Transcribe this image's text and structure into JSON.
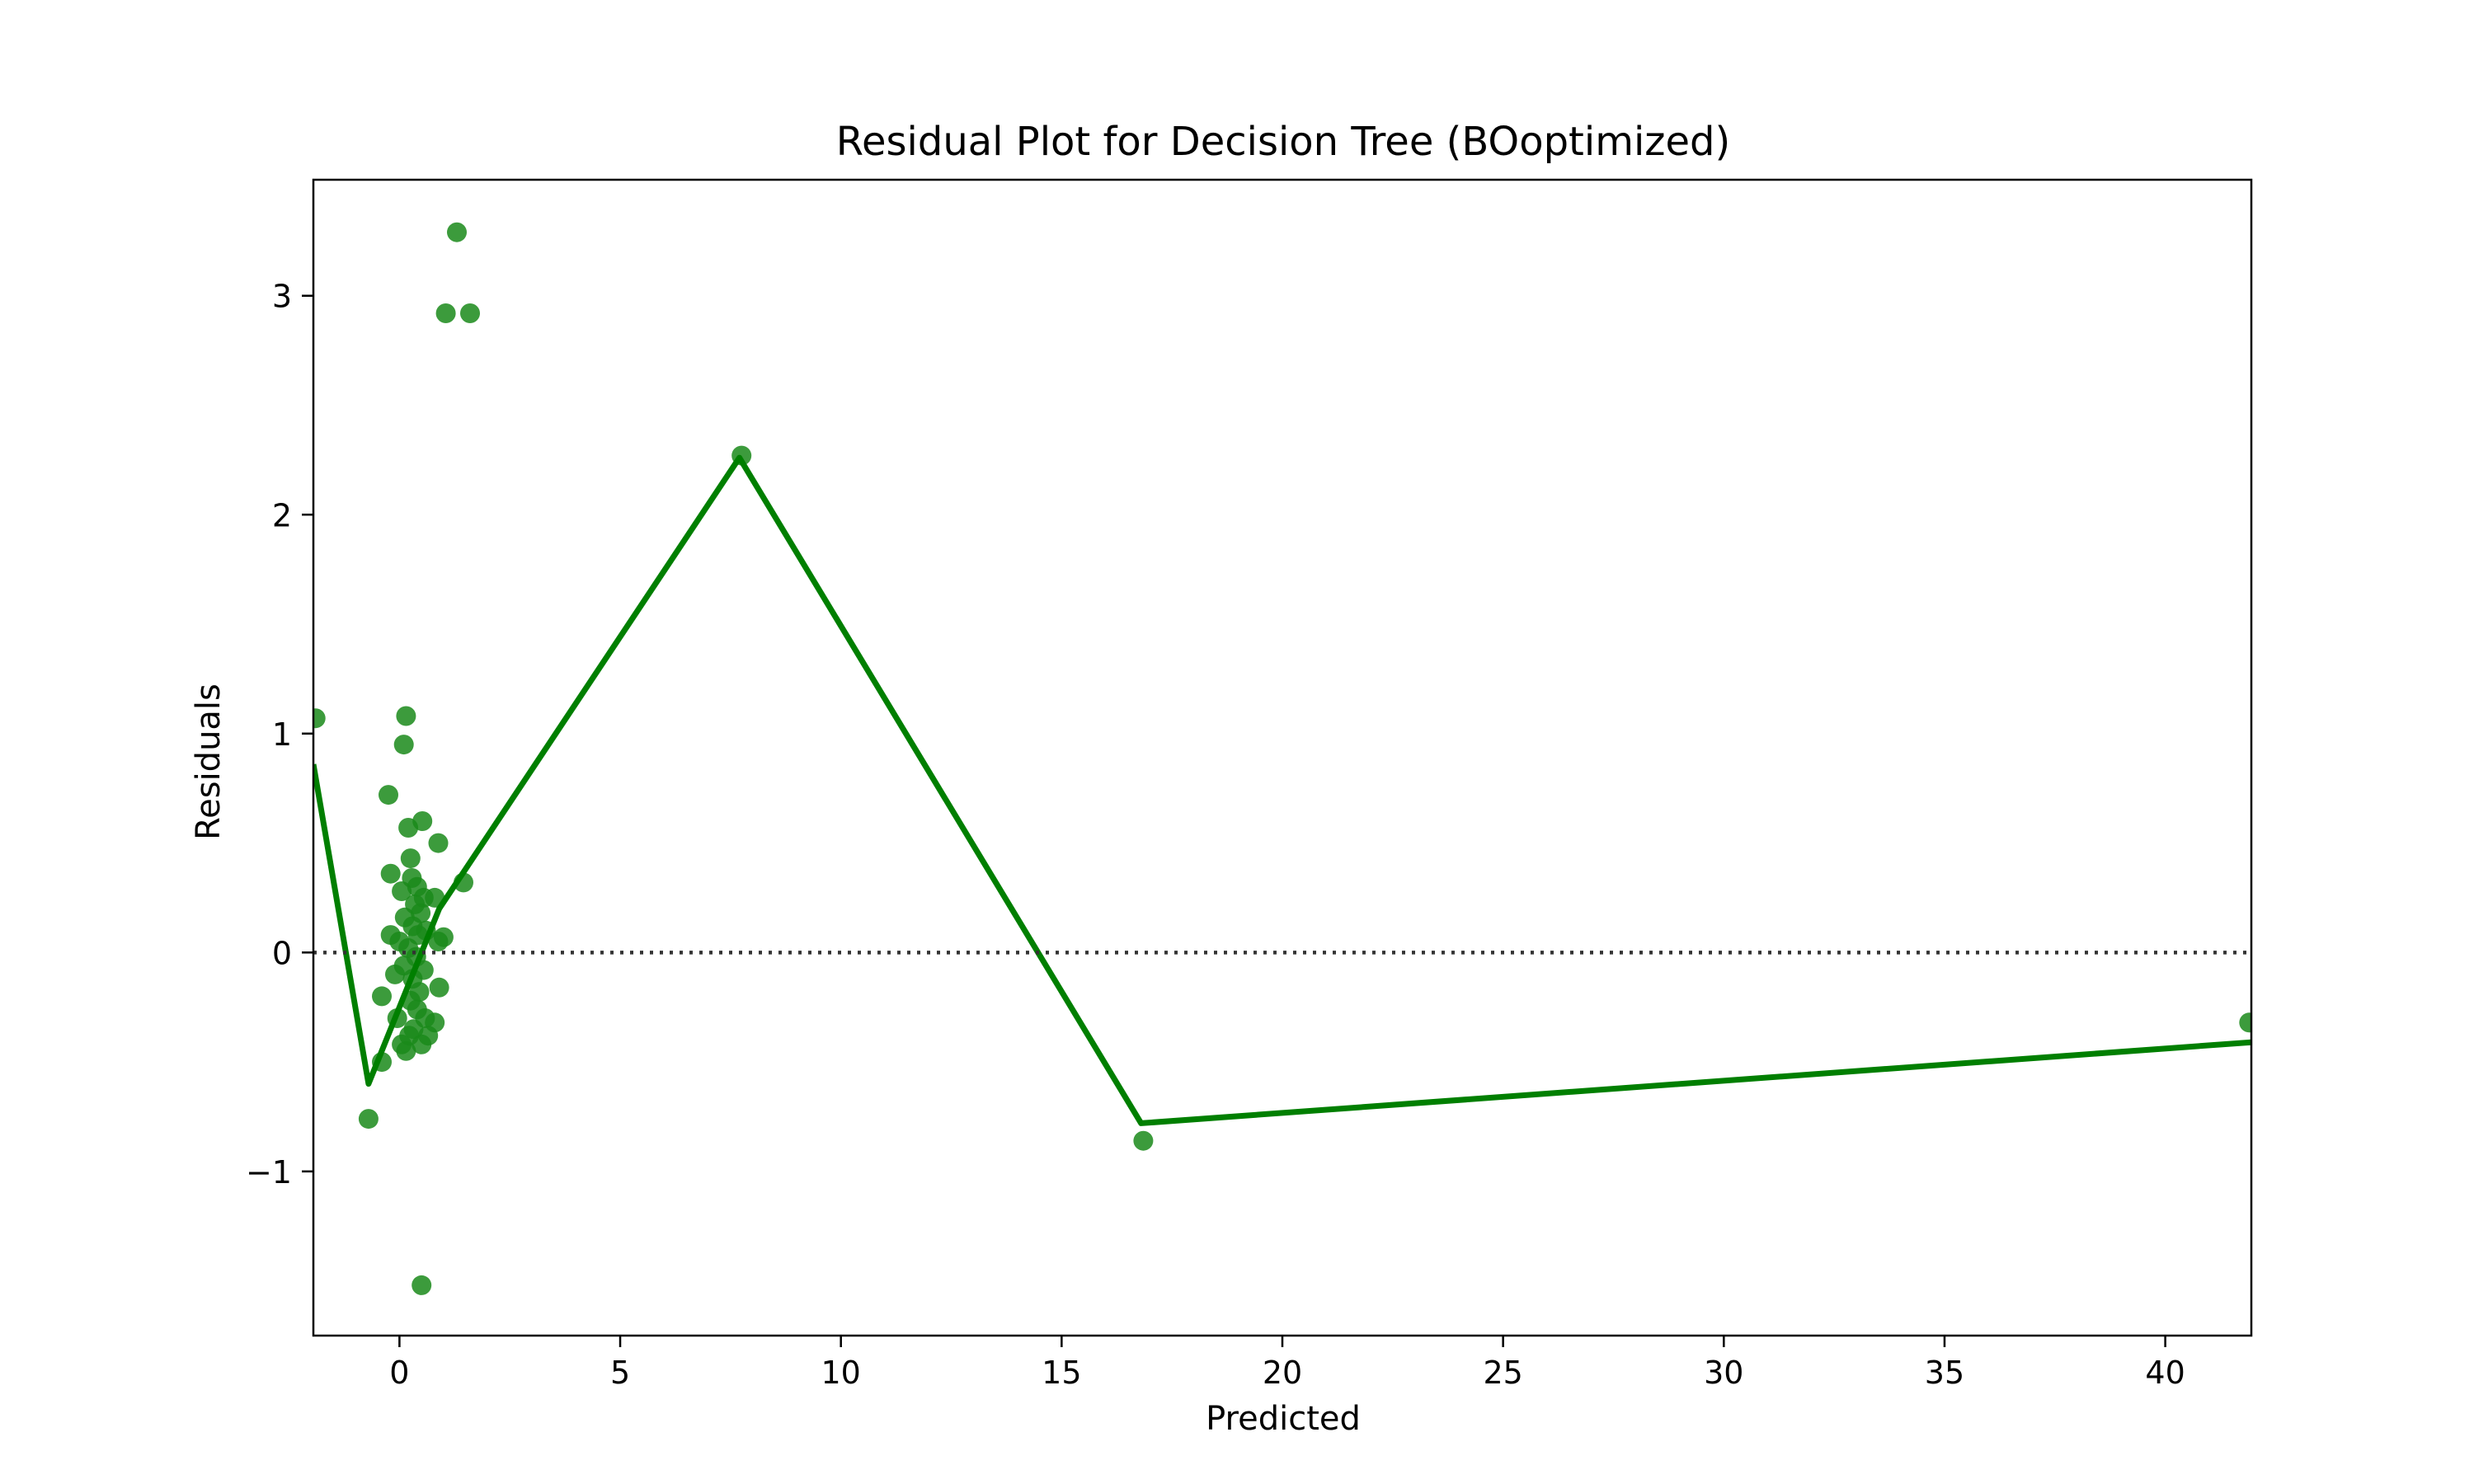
{
  "chart_data": {
    "type": "scatter",
    "title": "Residual Plot for Decision Tree (BOoptimized)",
    "xlabel": "Predicted",
    "ylabel": "Residuals",
    "xlim": [
      -1.95,
      41.95
    ],
    "ylim": [
      -1.75,
      3.53
    ],
    "x_ticks": [
      0,
      5,
      10,
      15,
      20,
      25,
      30,
      35,
      40
    ],
    "x_tick_labels": [
      "0",
      "5",
      "10",
      "15",
      "20",
      "25",
      "30",
      "35",
      "40"
    ],
    "y_ticks": [
      -1,
      0,
      1,
      2,
      3
    ],
    "y_tick_labels": [
      "−1",
      "0",
      "1",
      "2",
      "3"
    ],
    "grid": false,
    "colors": {
      "points": "#1a8a1a",
      "fit_line": "#007f00",
      "zero_line": "#333333",
      "frame": "#000000"
    },
    "zero_line": {
      "y": 0,
      "style": "dotted"
    },
    "series": [
      {
        "kind": "points",
        "points": [
          [
            -1.9,
            1.07
          ],
          [
            -0.7,
            -0.76
          ],
          [
            -0.4,
            -0.5
          ],
          [
            -0.4,
            -0.2
          ],
          [
            -0.25,
            0.72
          ],
          [
            -0.2,
            0.36
          ],
          [
            -0.2,
            0.08
          ],
          [
            -0.1,
            -0.1
          ],
          [
            -0.05,
            -0.3
          ],
          [
            0.0,
            0.05
          ],
          [
            0.05,
            0.28
          ],
          [
            0.05,
            -0.42
          ],
          [
            0.1,
            0.95
          ],
          [
            0.1,
            -0.06
          ],
          [
            0.12,
            0.16
          ],
          [
            0.15,
            1.08
          ],
          [
            0.15,
            -0.45
          ],
          [
            0.2,
            0.57
          ],
          [
            0.2,
            0.02
          ],
          [
            0.22,
            -0.38
          ],
          [
            0.25,
            0.43
          ],
          [
            0.25,
            -0.22
          ],
          [
            0.28,
            0.34
          ],
          [
            0.3,
            0.12
          ],
          [
            0.3,
            -0.12
          ],
          [
            0.32,
            -0.35
          ],
          [
            0.35,
            0.22
          ],
          [
            0.38,
            -0.02
          ],
          [
            0.4,
            0.3
          ],
          [
            0.4,
            -0.26
          ],
          [
            0.42,
            0.08
          ],
          [
            0.45,
            -0.18
          ],
          [
            0.48,
            0.18
          ],
          [
            0.5,
            -0.42
          ],
          [
            0.52,
            0.6
          ],
          [
            0.55,
            0.25
          ],
          [
            0.55,
            -0.08
          ],
          [
            0.58,
            -0.3
          ],
          [
            0.6,
            0.1
          ],
          [
            0.65,
            -0.38
          ],
          [
            0.8,
            0.25
          ],
          [
            0.8,
            -0.32
          ],
          [
            0.88,
            0.05
          ],
          [
            0.88,
            0.5
          ],
          [
            0.9,
            -0.16
          ],
          [
            1.0,
            0.07
          ],
          [
            1.05,
            2.92
          ],
          [
            1.3,
            3.29
          ],
          [
            1.45,
            0.32
          ],
          [
            1.6,
            2.92
          ],
          [
            7.75,
            2.27
          ],
          [
            16.85,
            -0.86
          ],
          [
            41.9,
            -0.32
          ],
          [
            0.5,
            -1.52
          ]
        ]
      },
      {
        "kind": "fit_line",
        "points": [
          [
            -1.95,
            0.86
          ],
          [
            -0.7,
            -0.6
          ],
          [
            0.1,
            -0.2
          ],
          [
            0.9,
            0.2
          ],
          [
            7.7,
            2.26
          ],
          [
            16.8,
            -0.78
          ],
          [
            41.95,
            -0.41
          ]
        ]
      }
    ]
  }
}
